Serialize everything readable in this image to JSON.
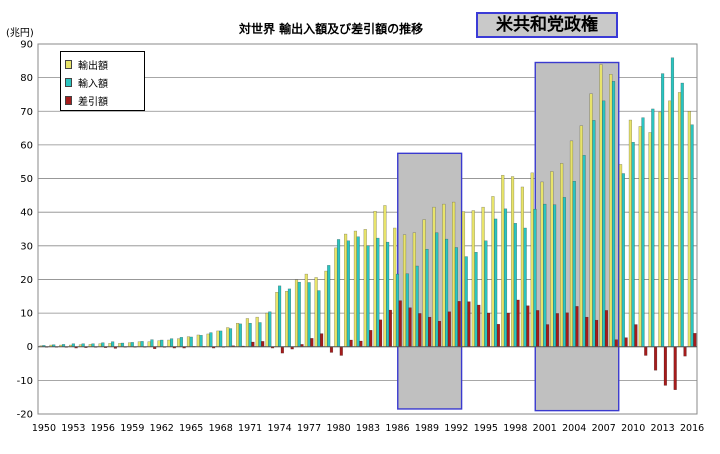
{
  "title": "対世界 輸出入額及び差引額の推移",
  "badge": "米共和党政権",
  "colors": {
    "export": "#e8e46a",
    "import": "#2bc4c0",
    "balance": "#a51c1c",
    "shade": "#c0c0c0",
    "shade_border": "#3a3acf"
  },
  "chart_data": {
    "type": "bar",
    "title": "対世界 輸出入額及び差引額の推移",
    "ylabel": "(兆円)",
    "ylim": [
      -20,
      90
    ],
    "yticks": [
      -20,
      -10,
      0,
      10,
      20,
      30,
      40,
      50,
      60,
      70,
      80,
      90
    ],
    "grid": true,
    "legend_position": "top-left",
    "x_tick_labels": [
      "1950",
      "1953",
      "1956",
      "1959",
      "1962",
      "1965",
      "1968",
      "1971",
      "1974",
      "1977",
      "1980",
      "1983",
      "1986",
      "1989",
      "1992",
      "1995",
      "1998",
      "2001",
      "2004",
      "2007",
      "2010",
      "2013",
      "2016"
    ],
    "categories": [
      1950,
      1951,
      1952,
      1953,
      1954,
      1955,
      1956,
      1957,
      1958,
      1959,
      1960,
      1961,
      1962,
      1963,
      1964,
      1965,
      1966,
      1967,
      1968,
      1969,
      1970,
      1971,
      1972,
      1973,
      1974,
      1975,
      1976,
      1977,
      1978,
      1979,
      1980,
      1981,
      1982,
      1983,
      1984,
      1985,
      1986,
      1987,
      1988,
      1989,
      1990,
      1991,
      1992,
      1993,
      1994,
      1995,
      1996,
      1997,
      1998,
      1999,
      2000,
      2001,
      2002,
      2003,
      2004,
      2005,
      2006,
      2007,
      2008,
      2009,
      2010,
      2011,
      2012,
      2013,
      2014,
      2015,
      2016
    ],
    "series": [
      {
        "name": "輸出額",
        "color": "#e8e46a",
        "values": [
          0.3,
          0.5,
          0.5,
          0.5,
          0.6,
          0.7,
          0.9,
          1.0,
          1.0,
          1.2,
          1.5,
          1.5,
          1.8,
          2.0,
          2.4,
          3.0,
          3.5,
          3.8,
          4.7,
          5.7,
          7.0,
          8.4,
          8.8,
          10.0,
          16.2,
          16.5,
          19.9,
          21.6,
          20.6,
          22.5,
          29.4,
          33.5,
          34.4,
          34.9,
          40.3,
          42.0,
          35.3,
          33.3,
          33.9,
          37.8,
          41.5,
          42.4,
          43.0,
          40.2,
          40.5,
          41.5,
          44.7,
          51.0,
          50.6,
          47.5,
          51.7,
          49.0,
          52.1,
          54.5,
          61.2,
          65.7,
          75.2,
          83.9,
          81.0,
          54.2,
          67.4,
          65.5,
          63.7,
          69.8,
          73.1,
          75.6,
          70.0
        ]
      },
      {
        "name": "輸入額",
        "color": "#2bc4c0",
        "values": [
          0.4,
          0.6,
          0.7,
          0.9,
          0.9,
          0.9,
          1.2,
          1.5,
          1.1,
          1.3,
          1.6,
          2.1,
          2.0,
          2.4,
          2.8,
          2.9,
          3.4,
          4.2,
          4.7,
          5.4,
          6.8,
          7.0,
          7.2,
          10.4,
          18.1,
          17.2,
          19.2,
          19.1,
          16.7,
          24.2,
          31.9,
          31.5,
          32.7,
          30.0,
          32.3,
          31.1,
          21.6,
          21.7,
          24.0,
          29.0,
          33.9,
          32.0,
          29.5,
          26.8,
          28.1,
          31.5,
          38.0,
          41.0,
          36.7,
          35.3,
          40.9,
          42.4,
          42.2,
          44.4,
          49.2,
          56.9,
          67.3,
          73.1,
          78.9,
          51.5,
          60.8,
          68.1,
          70.7,
          81.2,
          85.9,
          78.4,
          66.0
        ]
      },
      {
        "name": "差引額",
        "color": "#a51c1c",
        "values": [
          -0.1,
          -0.1,
          -0.2,
          -0.4,
          -0.3,
          -0.2,
          -0.3,
          -0.5,
          -0.1,
          -0.1,
          -0.1,
          -0.6,
          -0.2,
          -0.4,
          -0.4,
          0.1,
          0.1,
          -0.4,
          0.0,
          0.3,
          0.2,
          1.4,
          1.6,
          -0.4,
          -1.9,
          -0.7,
          0.7,
          2.5,
          3.9,
          -1.7,
          -2.6,
          2.0,
          1.7,
          4.9,
          8.0,
          10.9,
          13.7,
          11.6,
          9.9,
          8.8,
          7.6,
          10.4,
          13.5,
          13.4,
          12.4,
          10.0,
          6.7,
          10.0,
          13.9,
          12.2,
          10.8,
          6.6,
          9.9,
          10.1,
          12.0,
          8.8,
          7.9,
          10.8,
          2.1,
          2.7,
          6.6,
          -2.6,
          -7.0,
          -11.5,
          -12.8,
          -2.8,
          4.0
        ]
      }
    ],
    "highlight_ranges": [
      [
        1987,
        1992
      ],
      [
        2001,
        2008
      ]
    ]
  },
  "legend": {
    "export_label": "輸出額",
    "import_label": "輸入額",
    "balance_label": "差引額"
  }
}
